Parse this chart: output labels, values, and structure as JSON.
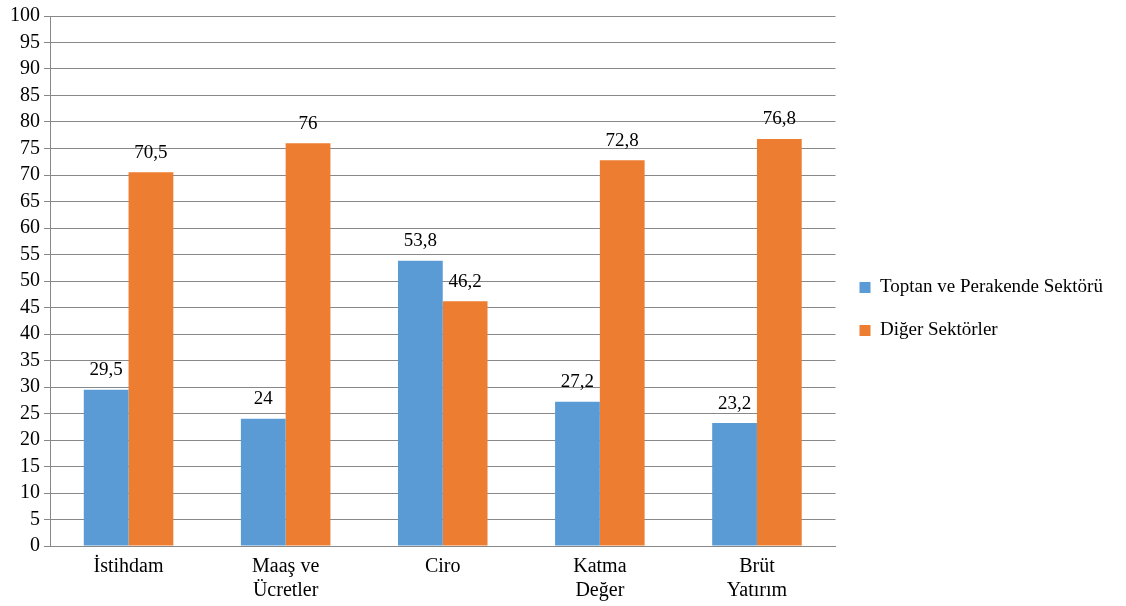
{
  "chart_data": {
    "type": "bar",
    "categories": [
      "İstihdam",
      "Maaş ve Ücretler",
      "Ciro",
      "Katma Değer",
      "Brüt Yatırım"
    ],
    "series": [
      {
        "name": "Toptan ve Perakende Sektörü",
        "color": "#5b9bd5",
        "values": [
          29.5,
          24,
          53.8,
          27.2,
          23.2
        ],
        "value_labels": [
          "29,5",
          "24",
          "53,8",
          "27,2",
          "23,2"
        ]
      },
      {
        "name": "Diğer Sektörler",
        "color": "#ed7d31",
        "values": [
          70.5,
          76,
          46.2,
          72.8,
          76.8
        ],
        "value_labels": [
          "70,5",
          "76",
          "46,2",
          "72,8",
          "76,8"
        ]
      }
    ],
    "ylim": [
      0,
      100
    ],
    "yticks": [
      0,
      5,
      10,
      15,
      20,
      25,
      30,
      35,
      40,
      45,
      50,
      55,
      60,
      65,
      70,
      75,
      80,
      85,
      90,
      95,
      100
    ],
    "grid": "y",
    "legend": "right"
  }
}
